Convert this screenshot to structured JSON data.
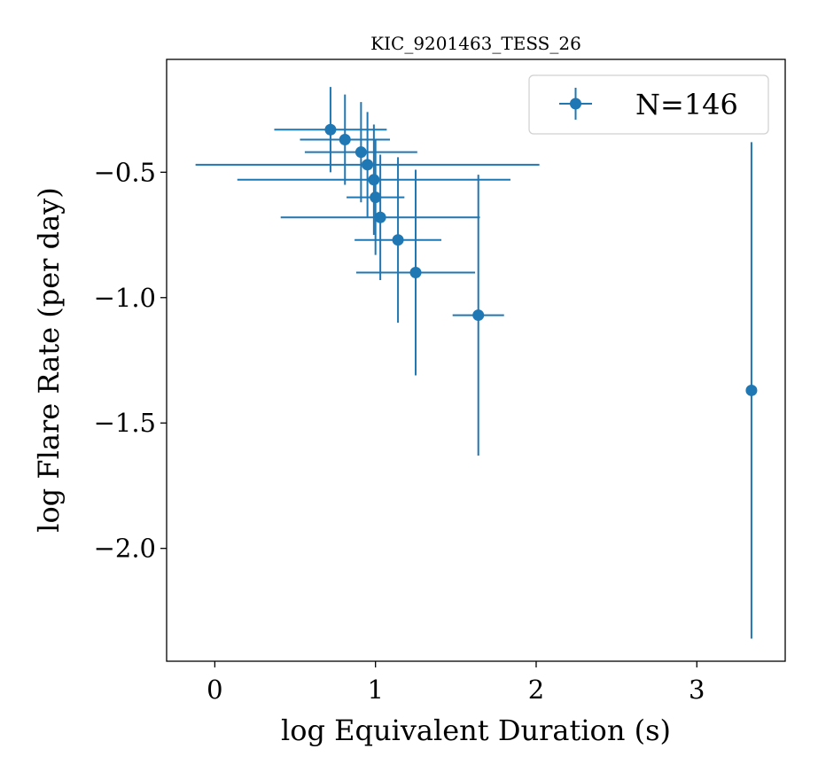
{
  "chart_data": {
    "type": "scatter",
    "title": "KIC_9201463_TESS_26",
    "xlabel": "log Equivalent Duration (s)",
    "ylabel": "log Flare Rate (per day)",
    "xlim": [
      -0.3,
      3.55
    ],
    "ylim": [
      -2.45,
      -0.05
    ],
    "xticks": [
      0,
      1,
      2,
      3
    ],
    "yticks": [
      -2.0,
      -1.5,
      -1.0,
      -0.5
    ],
    "xtick_labels": [
      "0",
      "1",
      "2",
      "3"
    ],
    "ytick_labels": [
      "−2.0",
      "−1.5",
      "−1.0",
      "−0.5"
    ],
    "color": "#1f77b4",
    "legend": {
      "label": "N=146",
      "position": "top-right"
    },
    "series": [
      {
        "name": "N=146",
        "points": [
          {
            "x": 0.72,
            "y": -0.33,
            "xerr": 0.35,
            "yerr": 0.17
          },
          {
            "x": 0.81,
            "y": -0.37,
            "xerr": 0.28,
            "yerr": 0.18
          },
          {
            "x": 0.91,
            "y": -0.42,
            "xerr": 0.35,
            "yerr": 0.2
          },
          {
            "x": 0.95,
            "y": -0.47,
            "xerr": 1.07,
            "yerr": 0.21
          },
          {
            "x": 0.99,
            "y": -0.53,
            "xerr": 0.85,
            "yerr": 0.22
          },
          {
            "x": 1.0,
            "y": -0.6,
            "xerr": 0.18,
            "yerr": 0.23
          },
          {
            "x": 1.03,
            "y": -0.68,
            "xerr": 0.62,
            "yerr": 0.25
          },
          {
            "x": 1.14,
            "y": -0.77,
            "xerr": 0.27,
            "yerr": 0.33
          },
          {
            "x": 1.25,
            "y": -0.9,
            "xerr": 0.37,
            "yerr": 0.41
          },
          {
            "x": 1.64,
            "y": -1.07,
            "xerr": 0.16,
            "yerr": 0.56
          },
          {
            "x": 3.34,
            "y": -1.37,
            "xerr": 0.0,
            "yerr": 0.99
          }
        ]
      }
    ]
  }
}
